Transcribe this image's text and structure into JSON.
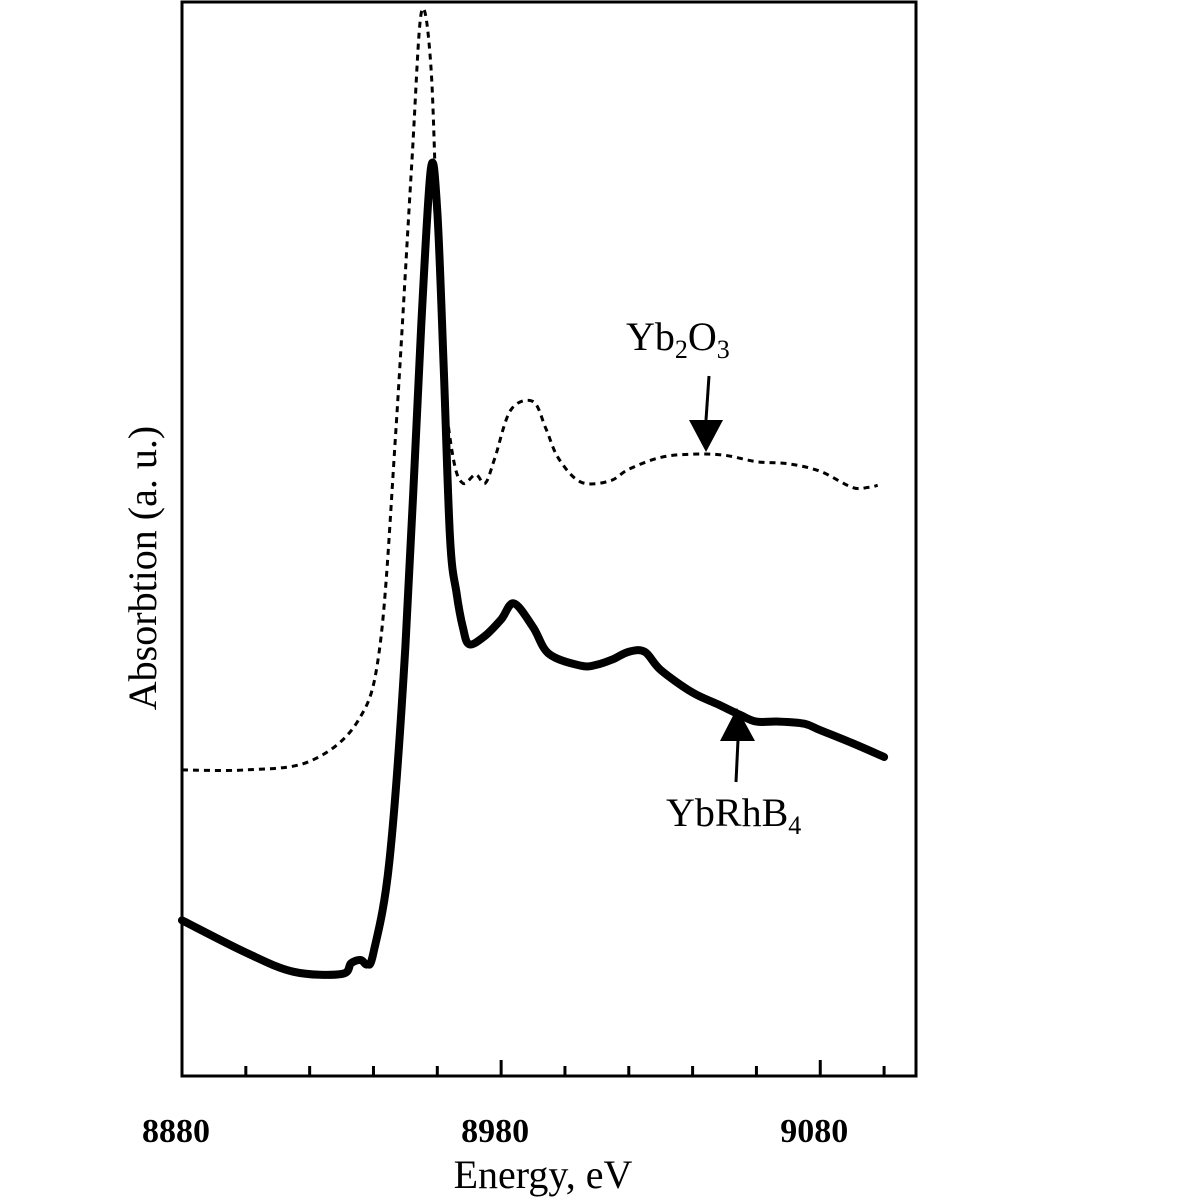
{
  "chart_data": {
    "type": "line",
    "xlabel": "Energy, eV",
    "ylabel": "Absorbtion (a. u.)",
    "xlim": [
      8880,
      9110
    ],
    "ylim": [
      0,
      1
    ],
    "x_ticks_major": [
      8880,
      8980,
      9080
    ],
    "x_tick_labels": [
      "8880",
      "8980",
      "9080"
    ],
    "x_tick_minor_step": 20,
    "grid": false,
    "series": [
      {
        "name": "YbRhB4",
        "label_main": "YbRhB",
        "label_sub": "4",
        "style": "solid",
        "color": "#000000",
        "x": [
          8880,
          8900,
          8915,
          8930,
          8933,
          8936,
          8938,
          8940,
          8945,
          8950,
          8955,
          8958,
          8960,
          8962,
          8964,
          8966,
          8968,
          8970,
          8975,
          8980,
          8984,
          8990,
          8995,
          9005,
          9010,
          9015,
          9020,
          9025,
          9030,
          9040,
          9048,
          9055,
          9060,
          9067,
          9075,
          9080,
          9090,
          9100
        ],
        "y": [
          0.145,
          0.115,
          0.097,
          0.095,
          0.105,
          0.108,
          0.104,
          0.115,
          0.2,
          0.4,
          0.7,
          0.845,
          0.805,
          0.66,
          0.5,
          0.45,
          0.418,
          0.402,
          0.41,
          0.425,
          0.44,
          0.418,
          0.393,
          0.382,
          0.383,
          0.388,
          0.395,
          0.395,
          0.378,
          0.357,
          0.346,
          0.336,
          0.33,
          0.33,
          0.328,
          0.322,
          0.31,
          0.297
        ]
      },
      {
        "name": "Yb2O3",
        "label_main": "Yb",
        "label_sub1": "2",
        "label_mid": "O",
        "label_sub2": "3",
        "style": "dotted",
        "color": "#000000",
        "x": [
          8880,
          8900,
          8920,
          8935,
          8942,
          8947,
          8952,
          8955,
          8958,
          8960,
          8962,
          8965,
          8968,
          8972,
          8975,
          8978,
          8983,
          8990,
          8994,
          8998,
          9005,
          9014,
          9020,
          9030,
          9040,
          9050,
          9060,
          9070,
          9080,
          9090,
          9095,
          9098
        ],
        "y": [
          0.285,
          0.285,
          0.293,
          0.33,
          0.4,
          0.6,
          0.85,
          0.99,
          0.94,
          0.78,
          0.65,
          0.575,
          0.552,
          0.56,
          0.552,
          0.575,
          0.62,
          0.628,
          0.603,
          0.575,
          0.553,
          0.554,
          0.565,
          0.576,
          0.579,
          0.578,
          0.572,
          0.57,
          0.563,
          0.548,
          0.548,
          0.55
        ]
      }
    ]
  }
}
